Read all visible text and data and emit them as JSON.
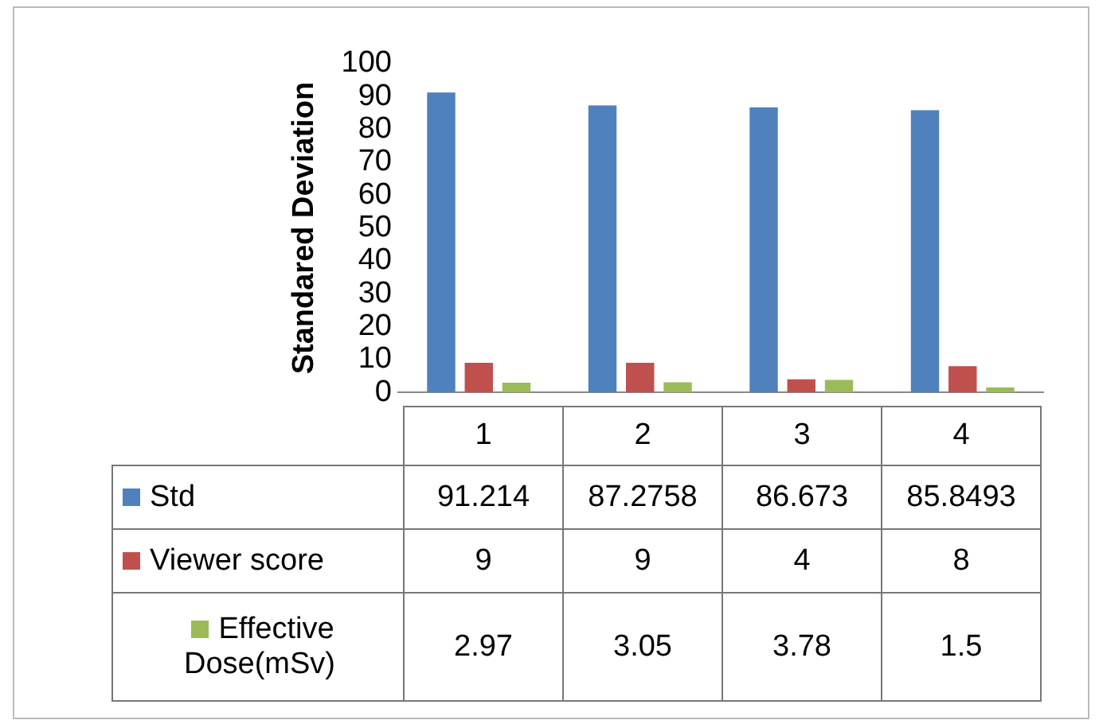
{
  "chart_data": {
    "type": "bar",
    "ylabel": "Standared Deviation",
    "categories": [
      "1",
      "2",
      "3",
      "4"
    ],
    "series": [
      {
        "name": "Std",
        "color": "#4f81bd",
        "values": [
          91.214,
          87.2758,
          86.673,
          85.8493
        ]
      },
      {
        "name": "Viewer score",
        "color": "#c0504d",
        "values": [
          9,
          9,
          4,
          8
        ]
      },
      {
        "name": "Effective Dose(mSv)",
        "color": "#9bbb59",
        "values": [
          2.97,
          3.05,
          3.78,
          1.5
        ]
      }
    ],
    "ylim": [
      0,
      100
    ],
    "yticks": [
      0,
      10,
      20,
      30,
      40,
      50,
      60,
      70,
      80,
      90,
      100
    ],
    "grid": false,
    "data_labels": true,
    "legend": "bottom left"
  }
}
